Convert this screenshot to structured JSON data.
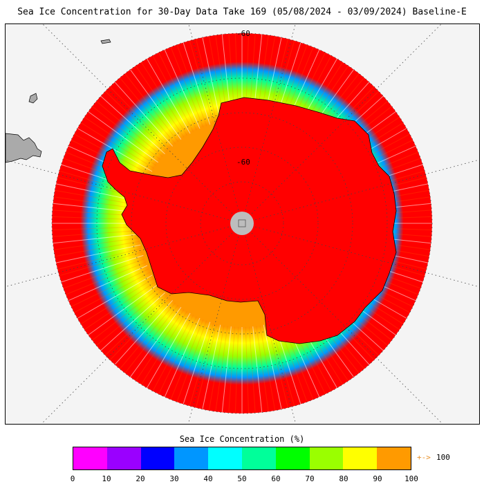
{
  "title": "Sea Ice Concentration for 30-Day Data Take 169 (05/08/2024 - 03/09/2024) Baseline-E",
  "map": {
    "projection": "south polar stereographic",
    "latitude_labels": [
      "-60",
      "-60"
    ],
    "colors": {
      "land": "#aaaaaa",
      "ocean_background": "#f4f4f4",
      "ice_100": "#ff0000",
      "pole_hole": "#bdbdbd",
      "gridlines": "#444444"
    }
  },
  "legend": {
    "title": "Sea Ice Concentration (%)",
    "ticks": [
      "0",
      "10",
      "20",
      "30",
      "40",
      "50",
      "60",
      "70",
      "80",
      "90",
      "100"
    ],
    "colors": [
      "#ff00ff",
      "#9a00ff",
      "#0000ff",
      "#0096ff",
      "#00ffff",
      "#00ff9a",
      "#00ff00",
      "#9aff00",
      "#ffff00",
      "#ff9a00"
    ],
    "overflow_symbol": "+->",
    "overflow_value": "100"
  }
}
